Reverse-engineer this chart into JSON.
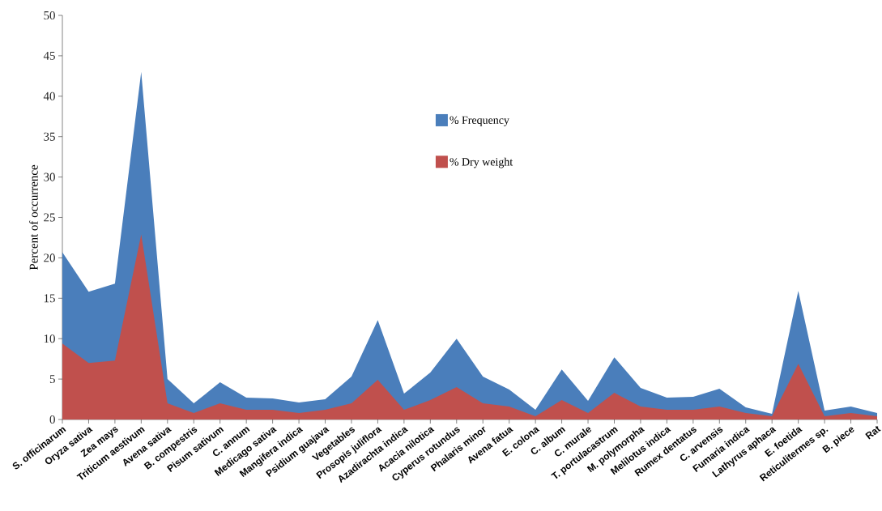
{
  "chart_data": {
    "type": "area",
    "ylabel": "Percent of occurrence",
    "categories": [
      "S. officinarum",
      "Oryza sativa",
      "Zea mays",
      "Triticum aestivum",
      "Avena sativa",
      "B. compestris",
      "Pisum sativum",
      "C. annum",
      "Medicago sativa",
      "Mangifera indica",
      "Psidium guajava",
      "Vegetables",
      "Prosopis juliflora",
      "Azadirachta indica",
      "Acacia nilotica",
      "Cyperus rotundus",
      "Phalaris minor",
      "Avena fatua",
      "E. colona",
      "C. album",
      "C. murale",
      "T. portulacastrum",
      "M. polymorpha",
      "Melilotus indica",
      "Rumex dentatus",
      "C. arvensis",
      "Fumaria indica",
      "Lathyrus aphaca",
      "E. foetida",
      "Reticulitermes sp.",
      "B. piece",
      "Rat"
    ],
    "series": [
      {
        "name": "% Frequency",
        "color": "#4a7ebb",
        "values": [
          20.7,
          15.8,
          16.8,
          43.0,
          5.0,
          2.0,
          4.6,
          2.7,
          2.6,
          2.1,
          2.5,
          5.3,
          12.3,
          3.2,
          5.8,
          10.0,
          5.3,
          3.7,
          1.2,
          6.2,
          2.3,
          7.7,
          3.9,
          2.7,
          2.8,
          3.8,
          1.5,
          0.7,
          15.9,
          1.1,
          1.6,
          0.8
        ]
      },
      {
        "name": "% Dry weight",
        "color": "#c0504d",
        "values": [
          9.4,
          7.0,
          7.3,
          22.9,
          2.0,
          0.8,
          2.0,
          1.2,
          1.2,
          0.8,
          1.2,
          2.0,
          4.9,
          1.2,
          2.4,
          4.0,
          2.0,
          1.6,
          0.4,
          2.4,
          0.8,
          3.3,
          1.6,
          1.2,
          1.2,
          1.6,
          0.8,
          0.4,
          6.9,
          0.4,
          0.8,
          0.4
        ]
      }
    ],
    "ylim": [
      0,
      50
    ],
    "yticks": [
      0,
      5,
      10,
      15,
      20,
      25,
      30,
      35,
      40,
      45,
      50
    ],
    "grid": false,
    "legend": "top"
  }
}
